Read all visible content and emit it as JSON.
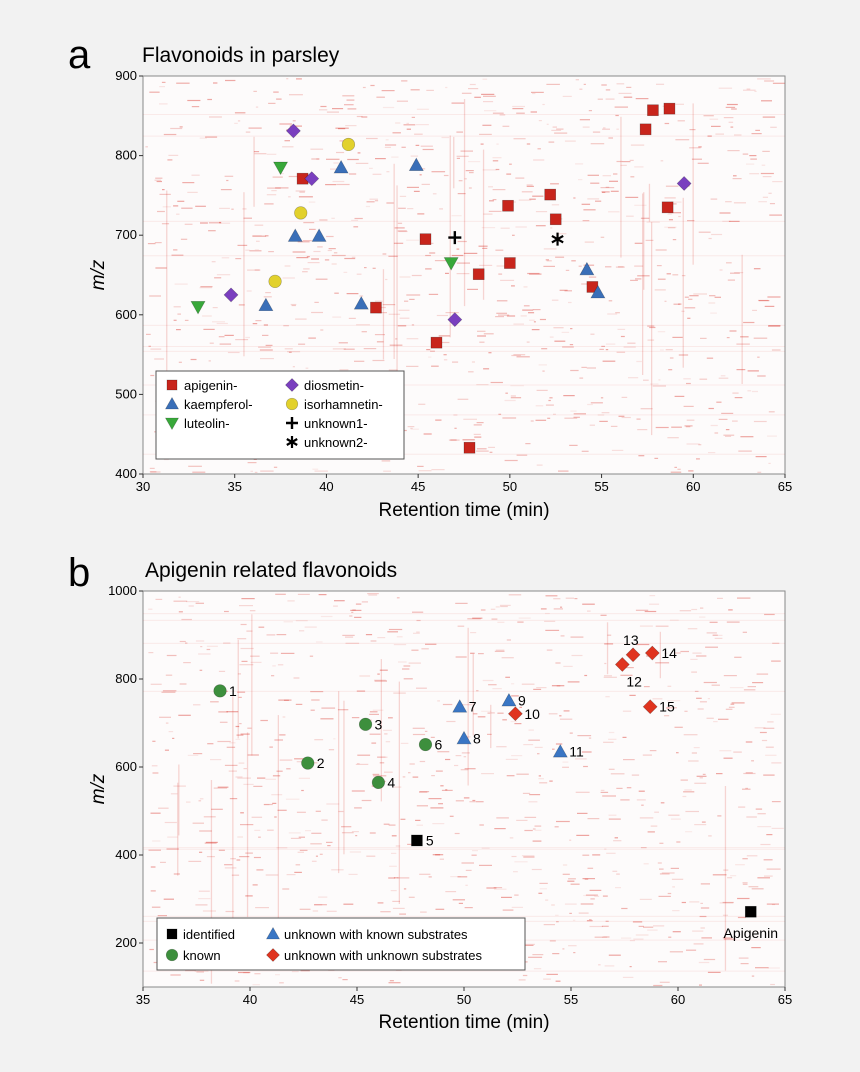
{
  "chart_data": [
    {
      "panel": "a",
      "type": "scatter",
      "title": "Flavonoids in parsley",
      "xlabel": "Retention time (min)",
      "ylabel": "m/z",
      "xlim": [
        30,
        65
      ],
      "ylim": [
        400,
        900
      ],
      "xticks": [
        30,
        35,
        40,
        45,
        50,
        55,
        60,
        65
      ],
      "yticks": [
        400,
        500,
        600,
        700,
        800,
        900
      ],
      "background": "LC-MS heatmap (red intensity streaks)",
      "legend_position": "bottom-left",
      "series": [
        {
          "name": "apigenin-",
          "marker": "square",
          "color": "#c8251c",
          "points": [
            [
              38.7,
              771
            ],
            [
              42.7,
              609
            ],
            [
              45.4,
              695
            ],
            [
              46.0,
              565
            ],
            [
              47.8,
              433
            ],
            [
              48.3,
              651
            ],
            [
              49.9,
              737
            ],
            [
              50.0,
              665
            ],
            [
              52.2,
              751
            ],
            [
              52.5,
              720
            ],
            [
              54.5,
              635
            ],
            [
              57.4,
              833
            ],
            [
              57.8,
              857
            ],
            [
              58.6,
              735
            ],
            [
              58.7,
              859
            ]
          ]
        },
        {
          "name": "kaempferol-",
          "marker": "triangle",
          "color": "#3a6fb8",
          "points": [
            [
              36.7,
              612
            ],
            [
              38.3,
              699
            ],
            [
              39.6,
              699
            ],
            [
              40.8,
              785
            ],
            [
              41.9,
              614
            ],
            [
              44.9,
              788
            ],
            [
              54.2,
              657
            ],
            [
              54.8,
              628
            ]
          ]
        },
        {
          "name": "luteolin-",
          "marker": "triangle-down",
          "color": "#38a83a",
          "points": [
            [
              33.0,
              610
            ],
            [
              37.5,
              785
            ],
            [
              46.8,
              665
            ]
          ]
        },
        {
          "name": "diosmetin-",
          "marker": "diamond",
          "color": "#7a3fbf",
          "points": [
            [
              34.8,
              625
            ],
            [
              38.2,
              831
            ],
            [
              39.2,
              771
            ],
            [
              47.0,
              594
            ],
            [
              59.5,
              765
            ]
          ]
        },
        {
          "name": "isorhamnetin-",
          "marker": "circle",
          "color": "#e2d12c",
          "points": [
            [
              37.2,
              642
            ],
            [
              38.6,
              728
            ],
            [
              41.2,
              814
            ]
          ]
        },
        {
          "name": "unknown1-",
          "marker": "plus",
          "color": "#000000",
          "points": [
            [
              47.0,
              697
            ]
          ]
        },
        {
          "name": "unknown2-",
          "marker": "asterisk",
          "color": "#000000",
          "points": [
            [
              52.6,
              695
            ]
          ]
        }
      ]
    },
    {
      "panel": "b",
      "type": "scatter",
      "title": "Apigenin related flavonoids",
      "xlabel": "Retention time (min)",
      "ylabel": "m/z",
      "xlim": [
        35,
        65
      ],
      "ylim": [
        100,
        1000
      ],
      "xticks": [
        35,
        40,
        45,
        50,
        55,
        60,
        65
      ],
      "yticks": [
        200,
        400,
        600,
        800,
        1000
      ],
      "background": "LC-MS heatmap (red intensity streaks)",
      "legend_position": "bottom-left",
      "series": [
        {
          "name": "identified",
          "marker": "square",
          "color": "#000000",
          "points": [
            {
              "x": 47.8,
              "y": 433,
              "label": "5"
            },
            {
              "x": 63.4,
              "y": 271,
              "label": "Apigenin"
            }
          ]
        },
        {
          "name": "known",
          "marker": "circle",
          "color": "#3d8f3d",
          "points": [
            {
              "x": 38.6,
              "y": 773,
              "label": "1"
            },
            {
              "x": 42.7,
              "y": 609,
              "label": "2"
            },
            {
              "x": 45.4,
              "y": 697,
              "label": "3"
            },
            {
              "x": 46.0,
              "y": 565,
              "label": "4"
            },
            {
              "x": 48.2,
              "y": 651,
              "label": "6"
            }
          ]
        },
        {
          "name": "unknown with known substrates",
          "marker": "triangle",
          "color": "#3a76c4",
          "points": [
            {
              "x": 49.8,
              "y": 737,
              "label": "7"
            },
            {
              "x": 50.0,
              "y": 665,
              "label": "8"
            },
            {
              "x": 52.1,
              "y": 751,
              "label": "9"
            },
            {
              "x": 54.5,
              "y": 635,
              "label": "11"
            }
          ]
        },
        {
          "name": "unknown with unknown substrates",
          "marker": "diamond",
          "color": "#e0341f",
          "points": [
            {
              "x": 52.4,
              "y": 721,
              "label": "10"
            },
            {
              "x": 57.4,
              "y": 833,
              "label": "12"
            },
            {
              "x": 57.9,
              "y": 855,
              "label": "13"
            },
            {
              "x": 58.8,
              "y": 859,
              "label": "14"
            },
            {
              "x": 58.7,
              "y": 737,
              "label": "15"
            }
          ]
        }
      ]
    }
  ]
}
